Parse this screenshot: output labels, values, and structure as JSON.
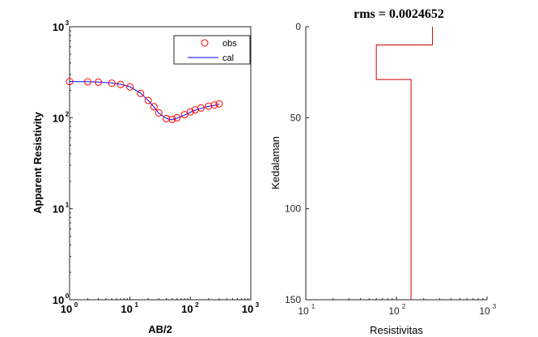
{
  "chart_data": [
    {
      "type": "scatter",
      "xscale": "log",
      "yscale": "log",
      "xlabel": "AB/2",
      "ylabel": "Apparent Resistivity",
      "xlim": [
        1,
        1000
      ],
      "ylim": [
        1,
        1000
      ],
      "xticks": [
        {
          "value": 1,
          "base": "10",
          "exp": "0"
        },
        {
          "value": 10,
          "base": "10",
          "exp": "1"
        },
        {
          "value": 100,
          "base": "10",
          "exp": "2"
        },
        {
          "value": 1000,
          "base": "10",
          "exp": "3"
        }
      ],
      "yticks": [
        {
          "value": 1,
          "base": "10",
          "exp": "0"
        },
        {
          "value": 10,
          "base": "10",
          "exp": "1"
        },
        {
          "value": 100,
          "base": "10",
          "exp": "2"
        },
        {
          "value": 1000,
          "base": "10",
          "exp": "3"
        }
      ],
      "legend": {
        "position": "top-right",
        "entries": [
          "obs",
          "cal"
        ]
      },
      "grid": false,
      "series": [
        {
          "name": "obs",
          "marker": "circle",
          "color": "#ff0000",
          "x": [
            1,
            2,
            3,
            5,
            7,
            10,
            15,
            20,
            25,
            30,
            40,
            50,
            60,
            80,
            100,
            120,
            150,
            200,
            250,
            300
          ],
          "y": [
            250,
            248,
            246,
            240,
            232,
            218,
            185,
            155,
            132,
            113,
            98,
            96,
            100,
            108,
            116,
            122,
            128,
            134,
            138,
            142
          ]
        },
        {
          "name": "cal",
          "line": "solid",
          "color": "#0000ff",
          "x": [
            1,
            2,
            3,
            5,
            7,
            10,
            15,
            20,
            25,
            30,
            40,
            50,
            60,
            80,
            100,
            120,
            150,
            200,
            250,
            300
          ],
          "y": [
            250,
            249,
            247,
            241,
            233,
            219,
            186,
            155,
            131,
            112,
            98,
            95,
            99,
            107,
            115,
            121,
            127,
            133,
            137,
            141
          ]
        }
      ]
    },
    {
      "type": "line",
      "title": "rms = 0.0024652",
      "xscale": "log",
      "xlabel": "Resistivitas",
      "ylabel": "Kedalaman",
      "xlim": [
        10,
        1000
      ],
      "ylim": [
        0,
        150
      ],
      "yreversed": true,
      "xticks": [
        {
          "value": 10,
          "base": "10",
          "exp": "1"
        },
        {
          "value": 100,
          "base": "10",
          "exp": "2"
        },
        {
          "value": 1000,
          "base": "10",
          "exp": "3"
        }
      ],
      "yticks": [
        0,
        50,
        100,
        150
      ],
      "grid": false,
      "series": [
        {
          "color": "#cc0000",
          "x": [
            250,
            250,
            60,
            60,
            145,
            145
          ],
          "y": [
            0,
            10,
            10,
            29,
            29,
            150
          ]
        }
      ]
    }
  ]
}
